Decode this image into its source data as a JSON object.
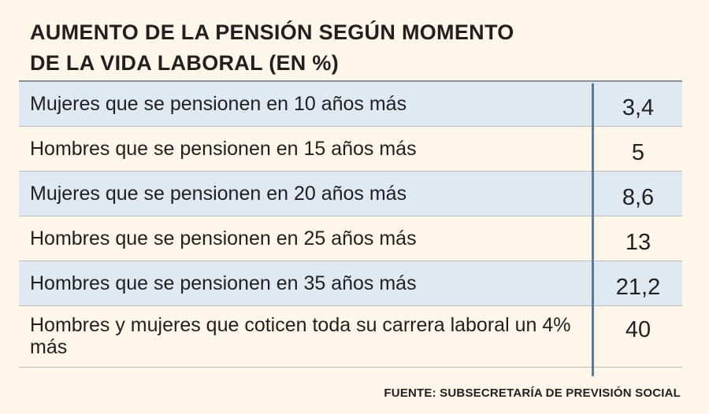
{
  "chart_data": {
    "type": "table",
    "title_lines": [
      "AUMENTO DE LA PENSIÓN SEGÚN MOMENTO",
      "DE LA VIDA LABORAL (EN %)"
    ],
    "rows": [
      {
        "label": "Mujeres que se pensionen en 10 años más",
        "value": "3,4"
      },
      {
        "label": "Hombres que se pensionen en 15 años más",
        "value": "5"
      },
      {
        "label": "Mujeres que se pensionen en 20 años más",
        "value": "8,6"
      },
      {
        "label": "Hombres que se pensionen en 25 años más",
        "value": "13"
      },
      {
        "label": "Hombres que se pensionen en 35 años más",
        "value": "21,2"
      },
      {
        "label": "Hombres y mujeres que coticen toda su carrera laboral un 4% más",
        "value": "40"
      }
    ],
    "source": "FUENTE: SUBSECRETARÍA DE PREVISIÓN SOCIAL"
  },
  "colors": {
    "background": "#fdf6e9",
    "row_shade": "#dfe9f2",
    "divider": "#4d7ea8",
    "text": "#231f20"
  }
}
